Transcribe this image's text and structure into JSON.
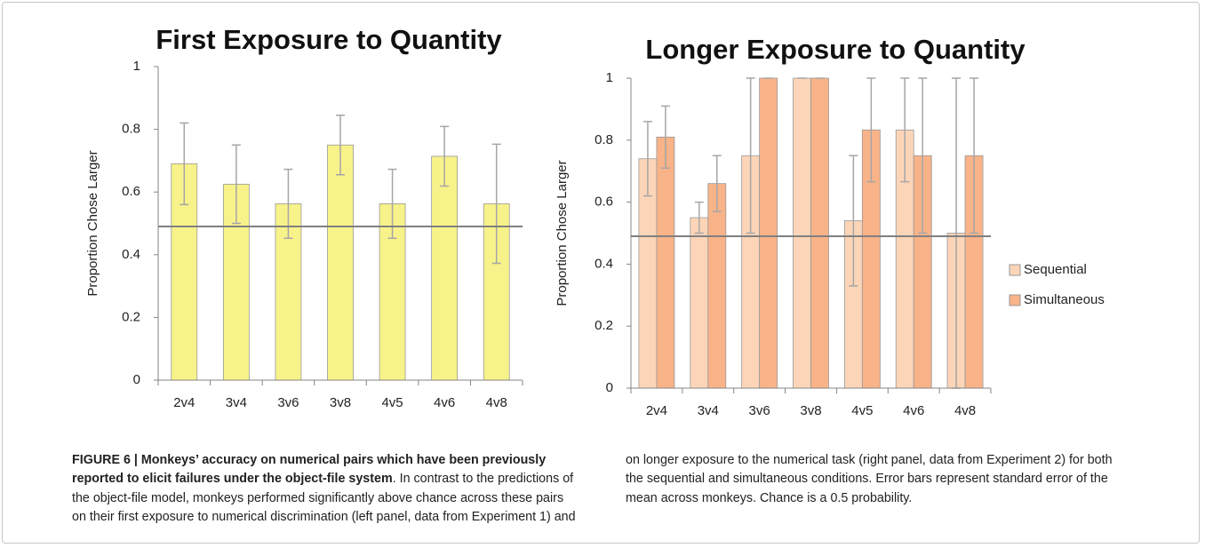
{
  "chart_data": [
    {
      "type": "bar",
      "title": "First Exposure to Quantity",
      "y_label": "Proportion Chose Larger",
      "categories": [
        "2v4",
        "3v4",
        "3v6",
        "3v8",
        "4v5",
        "4v6",
        "4v8"
      ],
      "series": [
        {
          "name": null,
          "color": "#f8f28a",
          "values": [
            0.69,
            0.625,
            0.5625,
            0.75,
            0.5625,
            0.714,
            0.5625
          ],
          "errors": [
            0.13,
            0.125,
            0.11,
            0.095,
            0.11,
            0.095,
            0.19
          ]
        }
      ],
      "ylim": [
        0,
        1
      ],
      "yticks": [
        0,
        0.2,
        0.4,
        0.6,
        0.8,
        1
      ],
      "chance_line": 0.49
    },
    {
      "type": "bar",
      "title": "Longer Exposure to Quantity",
      "y_label": "Proportion Chose Larger",
      "categories": [
        "2v4",
        "3v4",
        "3v6",
        "3v8",
        "4v5",
        "4v6",
        "4v8"
      ],
      "series": [
        {
          "name": "Sequential",
          "color": "#fcd5b8",
          "values": [
            0.74,
            0.55,
            0.75,
            1,
            0.54,
            0.833,
            0.5
          ],
          "errors": [
            0.12,
            0.05,
            0.25,
            0,
            0.21,
            0.167,
            0.5
          ]
        },
        {
          "name": "Simultaneous",
          "color": "#f9b388",
          "values": [
            0.81,
            0.66,
            1,
            1,
            0.833,
            0.75,
            0.75
          ],
          "errors": [
            0.1,
            0.09,
            0,
            0,
            0.167,
            0.25,
            0.25
          ]
        }
      ],
      "ylim": [
        0,
        1
      ],
      "yticks": [
        0,
        0.2,
        0.4,
        0.6,
        0.8,
        1
      ],
      "chance_line": 0.49,
      "legend": "right"
    }
  ],
  "caption": {
    "label": "FIGURE 6 | Monkeys’ accuracy on numerical pairs which have been previously reported to elicit failures under the object-file system",
    "text": ". In contrast to the predictions of the object-file model, monkeys performed significantly above chance across these pairs on their first exposure to numerical discrimination (left panel, data from Experiment 1) and on longer exposure to the numerical task (right panel, data from Experiment 2) for both the sequential and simultaneous conditions. Error bars represent standard error of the mean across monkeys. Chance is a 0.5 probability."
  }
}
